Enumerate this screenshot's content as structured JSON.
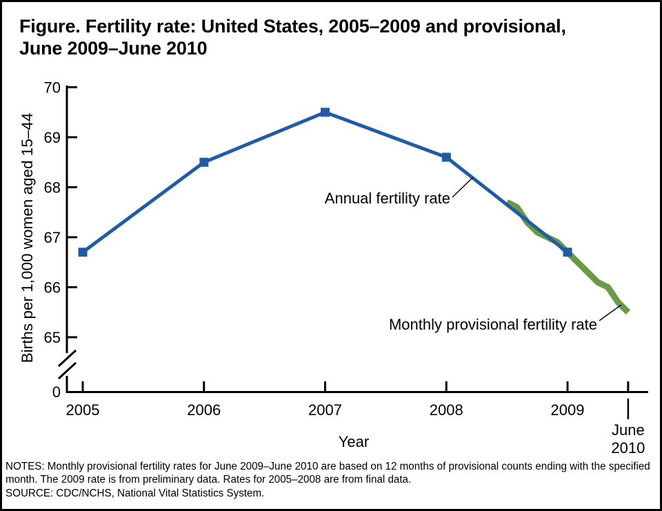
{
  "chart_data": {
    "type": "line",
    "title": "Figure. Fertility rate: United States, 2005–2009 and provisional, June 2009–June 2010",
    "title_lines": [
      "Figure. Fertility rate: United States, 2005–2009 and provisional,",
      "June 2009–June 2010"
    ],
    "ylabel": "Births per 1,000 women aged 15–44",
    "xlabel": "Year",
    "ylim": [
      65,
      70
    ],
    "y_axis_break_to_zero": true,
    "y_ticks": [
      70,
      69,
      68,
      67,
      66,
      65
    ],
    "y_zero_label": "0",
    "grid": false,
    "legend": "inline-annotations",
    "x_ticks": [
      {
        "label": "2005",
        "x": 2005
      },
      {
        "label": "2006",
        "x": 2006
      },
      {
        "label": "2007",
        "x": 2007
      },
      {
        "label": "2008",
        "x": 2008
      },
      {
        "label": "2009",
        "x": 2009
      },
      {
        "label": "June 2010",
        "x": 2009.5,
        "lines": [
          "June",
          "2010"
        ]
      }
    ],
    "series": [
      {
        "name": "Annual fertility rate",
        "color": "#1f5ca8",
        "marker": "square",
        "x": [
          2005,
          2006,
          2007,
          2008,
          2009
        ],
        "values": [
          66.7,
          68.5,
          69.5,
          68.6,
          66.7
        ]
      },
      {
        "name": "Monthly provisional fertility rate",
        "color": "#689c44",
        "marker": "none",
        "period": "June 2009 – June 2010 (12-month ending values)",
        "x_start": 2008.5,
        "x_step": 0.083333,
        "values": [
          67.7,
          67.6,
          67.3,
          67.1,
          67.0,
          66.9,
          66.7,
          66.5,
          66.3,
          66.1,
          66.0,
          65.7,
          65.5
        ]
      }
    ],
    "annotations": [
      {
        "text": "Annual fertility rate",
        "points_to": "annual series"
      },
      {
        "text": "Monthly provisional fertility rate",
        "points_to": "monthly provisional series"
      }
    ],
    "notes": "NOTES: Monthly provisional fertility rates for June 2009–June 2010 are based on 12 months of provisional counts ending with the specified month. The 2009 rate is from preliminary data. Rates for 2005–2008 are from final data.",
    "source": "SOURCE: CDC/NCHS, National Vital Statistics System."
  }
}
